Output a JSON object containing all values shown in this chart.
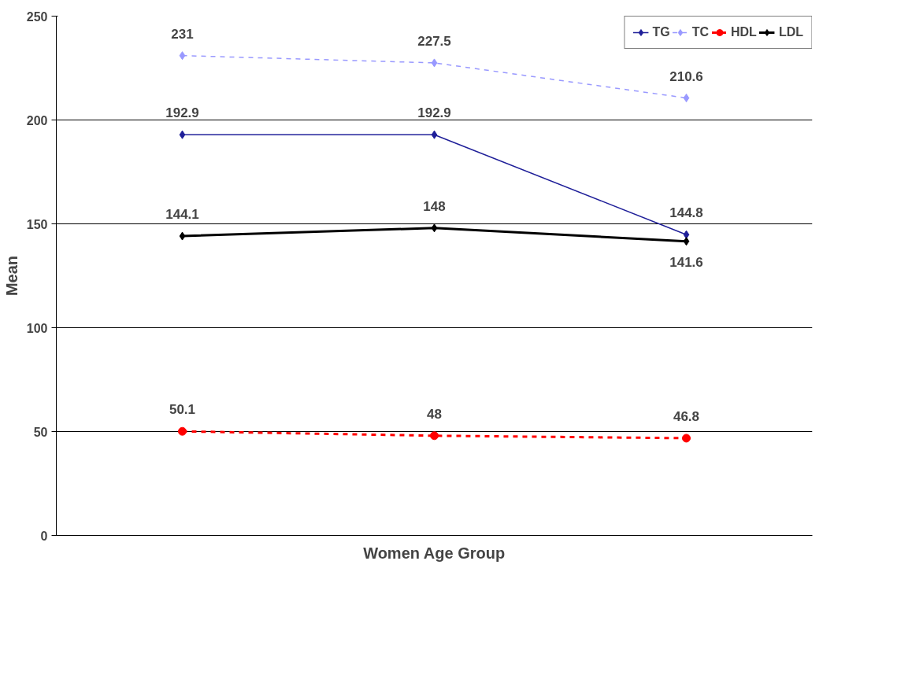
{
  "chart_data": {
    "type": "line",
    "xlabel": "Women Age Group",
    "ylabel": "Mean",
    "categories": [
      null,
      null,
      null
    ],
    "series": [
      {
        "name": "TG",
        "color": "#1f1f99",
        "values": [
          192.9,
          192.9,
          144.8
        ],
        "marker": "diamond",
        "line_style": "solid"
      },
      {
        "name": "TC",
        "color": "#9999ff",
        "values": [
          231,
          227.5,
          210.6
        ],
        "marker": "diamond",
        "line_style": "dashed"
      },
      {
        "name": "HDL",
        "color": "#ff0000",
        "values": [
          50.1,
          48,
          46.8
        ],
        "marker": "circle",
        "line_style": "dashed"
      },
      {
        "name": "LDL",
        "color": "#000000",
        "values": [
          144.1,
          148,
          141.6
        ],
        "marker": "diamond",
        "line_style": "solid"
      }
    ],
    "ylim": [
      0,
      250
    ],
    "yticks": [
      0,
      50,
      100,
      150,
      200,
      250
    ],
    "grid": "y",
    "legend": "top right",
    "data_labels": true
  }
}
